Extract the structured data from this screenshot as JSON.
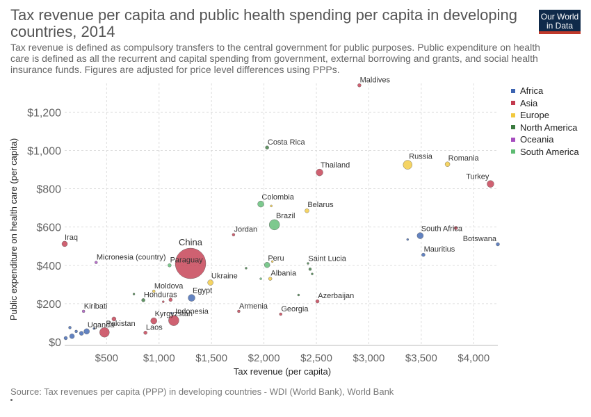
{
  "header": {
    "title": "Tax revenue per capita and public health spending per capita in developing countries, 2014",
    "subtitle": "Tax revenue is defined as compulsory transfers to the central government for public purposes. Public expenditure on health care is defined as all the recurrent and capital spending from government, external borrowing and grants, and social health insurance funds. Figures are adjusted for price level differences using PPPs.",
    "logo_line1": "Our World",
    "logo_line2": "in Data"
  },
  "footer": {
    "source": "Source: Tax revenues per capita (PPP) in developing countries - WDI (World Bank), World Bank"
  },
  "chart_data": {
    "type": "scatter",
    "xlabel": "Tax revenue (per capita)",
    "ylabel": "Public expenditure on health care (per capita)",
    "xticks": [
      500,
      1000,
      1500,
      2000,
      2500,
      3000,
      3500,
      4000
    ],
    "xtick_labels": [
      "$500",
      "$1,000",
      "$1,500",
      "$2,000",
      "$2,500",
      "$3,000",
      "$3,500",
      "$4,000"
    ],
    "yticks": [
      0,
      200,
      400,
      600,
      800,
      1000,
      1200
    ],
    "ytick_labels": [
      "$0",
      "$200",
      "$400",
      "$600",
      "$800",
      "$1,000",
      "$1,200"
    ],
    "xlim": [
      100,
      4230
    ],
    "ylim": [
      0,
      1350
    ],
    "grid": true,
    "legend_position": "right",
    "legend": [
      {
        "name": "Africa",
        "color": "#3c64b1"
      },
      {
        "name": "Asia",
        "color": "#c33a4e"
      },
      {
        "name": "Europe",
        "color": "#f2c93d"
      },
      {
        "name": "North America",
        "color": "#3a7a3f"
      },
      {
        "name": "Oceania",
        "color": "#a64dbf"
      },
      {
        "name": "South America",
        "color": "#5dbb72"
      }
    ],
    "points": [
      {
        "label": "Maldives",
        "x": 2910,
        "y": 1340,
        "r": 2.5,
        "region": "Asia"
      },
      {
        "label": "Costa Rica",
        "x": 2030,
        "y": 1015,
        "r": 2.5,
        "region": "North America"
      },
      {
        "label": "Thailand",
        "x": 2530,
        "y": 885,
        "r": 5,
        "region": "Asia"
      },
      {
        "label": "Russia",
        "x": 3370,
        "y": 925,
        "r": 6.5,
        "region": "Europe"
      },
      {
        "label": "Romania",
        "x": 3750,
        "y": 928,
        "r": 3.5,
        "region": "Europe"
      },
      {
        "label": "Turkey",
        "x": 4160,
        "y": 825,
        "r": 5,
        "region": "Asia"
      },
      {
        "label": "Colombia",
        "x": 1970,
        "y": 720,
        "r": 4.5,
        "region": "South America"
      },
      {
        "label": "",
        "x": 2070,
        "y": 710,
        "r": 1.5,
        "region": "Europe"
      },
      {
        "label": "Belarus",
        "x": 2410,
        "y": 685,
        "r": 3,
        "region": "Europe"
      },
      {
        "label": "Brazil",
        "x": 2100,
        "y": 612,
        "r": 7.5,
        "region": "South America"
      },
      {
        "label": "Jordan",
        "x": 1710,
        "y": 560,
        "r": 2,
        "region": "Asia"
      },
      {
        "label": "South Africa",
        "x": 3490,
        "y": 555,
        "r": 4.5,
        "region": "Africa"
      },
      {
        "label": "",
        "x": 3830,
        "y": 595,
        "r": 2.5,
        "region": "Asia"
      },
      {
        "label": "",
        "x": 3370,
        "y": 535,
        "r": 1.5,
        "region": "Africa"
      },
      {
        "label": "Botswana",
        "x": 4230,
        "y": 510,
        "r": 2.5,
        "region": "Africa"
      },
      {
        "label": "Mauritius",
        "x": 3520,
        "y": 455,
        "r": 2.5,
        "region": "Africa"
      },
      {
        "label": "Iraq",
        "x": 100,
        "y": 512,
        "r": 4,
        "region": "Asia"
      },
      {
        "label": "China",
        "x": 1300,
        "y": 410,
        "r": 22,
        "region": "Asia"
      },
      {
        "label": "Paraguay",
        "x": 1100,
        "y": 400,
        "r": 2.5,
        "region": "South America"
      },
      {
        "label": "Micronesia (country)",
        "x": 400,
        "y": 415,
        "r": 2,
        "region": "Oceania"
      },
      {
        "label": "Peru",
        "x": 2030,
        "y": 402,
        "r": 4,
        "region": "South America"
      },
      {
        "label": "",
        "x": 2080,
        "y": 420,
        "r": 1.5,
        "region": "Europe"
      },
      {
        "label": "",
        "x": 1830,
        "y": 385,
        "r": 1.5,
        "region": "North America"
      },
      {
        "label": "Saint Lucia",
        "x": 2420,
        "y": 410,
        "r": 1.5,
        "region": "North America"
      },
      {
        "label": "",
        "x": 2440,
        "y": 380,
        "r": 2,
        "region": "North America"
      },
      {
        "label": "",
        "x": 2460,
        "y": 355,
        "r": 1.5,
        "region": "North America"
      },
      {
        "label": "Albania",
        "x": 2060,
        "y": 330,
        "r": 2.5,
        "region": "Europe"
      },
      {
        "label": "",
        "x": 1970,
        "y": 330,
        "r": 1.5,
        "region": "South America"
      },
      {
        "label": "Ukraine",
        "x": 1490,
        "y": 310,
        "r": 4,
        "region": "Europe"
      },
      {
        "label": "Moldova",
        "x": 950,
        "y": 265,
        "r": 2,
        "region": "Europe"
      },
      {
        "label": "",
        "x": 760,
        "y": 250,
        "r": 1.5,
        "region": "North America"
      },
      {
        "label": "Honduras",
        "x": 850,
        "y": 218,
        "r": 2.5,
        "region": "North America"
      },
      {
        "label": "",
        "x": 1040,
        "y": 210,
        "r": 1.5,
        "region": "Asia"
      },
      {
        "label": "",
        "x": 1110,
        "y": 220,
        "r": 2.5,
        "region": "Asia"
      },
      {
        "label": "Egypt",
        "x": 1310,
        "y": 230,
        "r": 5,
        "region": "Africa"
      },
      {
        "label": "",
        "x": 2330,
        "y": 245,
        "r": 1.5,
        "region": "North America"
      },
      {
        "label": "Azerbaijan",
        "x": 2510,
        "y": 212,
        "r": 2.5,
        "region": "Asia"
      },
      {
        "label": "Kiribati",
        "x": 280,
        "y": 160,
        "r": 2,
        "region": "Oceania"
      },
      {
        "label": "Armenia",
        "x": 1760,
        "y": 160,
        "r": 2,
        "region": "Asia"
      },
      {
        "label": "Georgia",
        "x": 2160,
        "y": 145,
        "r": 2,
        "region": "Asia"
      },
      {
        "label": "Indonesia",
        "x": 1140,
        "y": 112,
        "r": 7.5,
        "region": "Asia"
      },
      {
        "label": "",
        "x": 1120,
        "y": 150,
        "r": 1.5,
        "region": "Africa"
      },
      {
        "label": "Kyrgyzstan",
        "x": 950,
        "y": 110,
        "r": 4.5,
        "region": "Asia"
      },
      {
        "label": "",
        "x": 570,
        "y": 120,
        "r": 3,
        "region": "Asia"
      },
      {
        "label": "Pakistan",
        "x": 480,
        "y": 50,
        "r": 7,
        "region": "Asia"
      },
      {
        "label": "Laos",
        "x": 870,
        "y": 48,
        "r": 2.5,
        "region": "Asia"
      },
      {
        "label": "Uganda",
        "x": 310,
        "y": 55,
        "r": 4,
        "region": "Africa"
      },
      {
        "label": "",
        "x": 260,
        "y": 45,
        "r": 3,
        "region": "Africa"
      },
      {
        "label": "",
        "x": 170,
        "y": 30,
        "r": 3.5,
        "region": "Africa"
      },
      {
        "label": "",
        "x": 110,
        "y": 20,
        "r": 2.5,
        "region": "Africa"
      },
      {
        "label": "",
        "x": 150,
        "y": 75,
        "r": 2,
        "region": "Africa"
      },
      {
        "label": "",
        "x": 210,
        "y": 55,
        "r": 2,
        "region": "Africa"
      },
      {
        "label": "",
        "x": 380,
        "y": 70,
        "r": 1.5,
        "region": "Africa"
      }
    ]
  }
}
